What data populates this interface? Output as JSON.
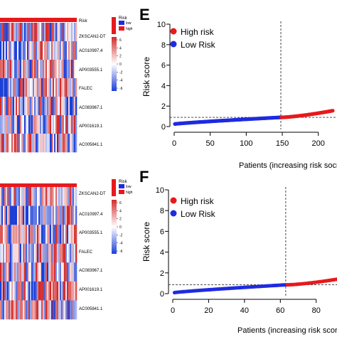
{
  "colors": {
    "high": "#e8191c",
    "low": "#1f2be0",
    "heat_high": "#d42b2b",
    "heat_mid": "#ffffff",
    "heat_low": "#1c3fd6",
    "annotation_bar": "#e8191c"
  },
  "heatmaps": [
    {
      "risk_label": "Risk",
      "genes": [
        "ZKSCAN2-DT",
        "AC010997.4",
        "AP003555.1",
        "FALEC",
        "AC083967.1",
        "AP001619.1",
        "AC005841.1"
      ],
      "legend_title": "Risk",
      "legend_items": [
        {
          "label": "low",
          "color": "#1f2be0"
        },
        {
          "label": "high",
          "color": "#e8191c"
        }
      ],
      "colorbar_ticks": [
        6,
        4,
        2,
        0,
        -2,
        -4,
        -6
      ]
    },
    {
      "risk_label": "",
      "genes": [
        "ZKSCAN2-DT",
        "AC010997.4",
        "AP003555.1",
        "FALEC",
        "AC083967.1",
        "AP001619.1",
        "AC005841.1"
      ],
      "legend_title": "Risk",
      "legend_items": [
        {
          "label": "low",
          "color": "#1f2be0"
        },
        {
          "label": "high",
          "color": "#e8191c"
        }
      ],
      "colorbar_ticks": [
        6,
        4,
        2,
        0,
        -2,
        -4,
        -6
      ]
    }
  ],
  "chart_data": [
    {
      "panel": "E",
      "type": "scatter",
      "title": "",
      "xlabel": "Patients (increasing risk socre)",
      "ylabel": "Risk score",
      "xlim": [
        0,
        220
      ],
      "ylim": [
        0,
        10
      ],
      "xticks": [
        0,
        50,
        100,
        150,
        200
      ],
      "yticks": [
        0,
        2,
        4,
        6,
        8,
        10
      ],
      "cutoff_x": 148,
      "cutoff_y": 0.9,
      "legend": [
        "High risk",
        "Low Risk"
      ],
      "series": [
        {
          "name": "Low Risk",
          "x_range": [
            1,
            148
          ],
          "y_start": 0.25,
          "y_end": 0.9
        },
        {
          "name": "High risk",
          "x_range": [
            149,
            220
          ],
          "y_start": 0.9,
          "y_end": 1.55
        }
      ]
    },
    {
      "panel": "F",
      "type": "scatter",
      "title": "",
      "xlabel": "Patients (increasing risk score)",
      "ylabel": "Risk score",
      "xlim": [
        0,
        92
      ],
      "ylim": [
        0,
        10
      ],
      "xticks": [
        0,
        20,
        40,
        60,
        80
      ],
      "yticks": [
        0,
        2,
        4,
        6,
        8,
        10
      ],
      "cutoff_x": 63,
      "cutoff_y": 0.85,
      "legend": [
        "High risk",
        "Low Risk"
      ],
      "series": [
        {
          "name": "Low Risk",
          "x_range": [
            1,
            63
          ],
          "y_start": 0.1,
          "y_end": 0.85
        },
        {
          "name": "High risk",
          "x_range": [
            64,
            92
          ],
          "y_start": 0.85,
          "y_end": 1.4
        }
      ]
    }
  ]
}
